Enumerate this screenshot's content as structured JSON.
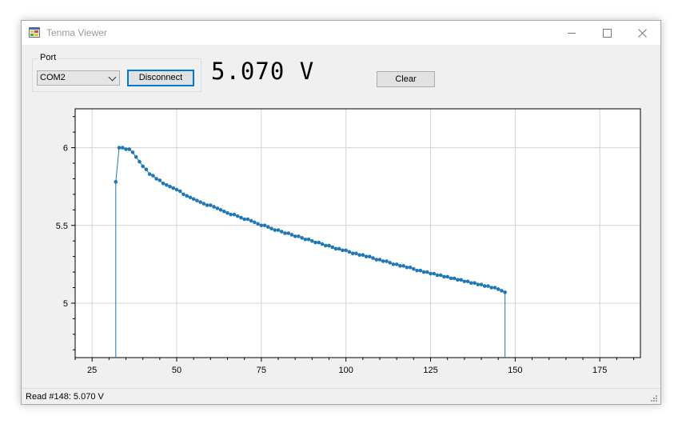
{
  "window": {
    "title": "Tenma Viewer"
  },
  "port_group": {
    "label": "Port",
    "selected": "COM2",
    "button_label": "Disconnect"
  },
  "reading": "5.070 V",
  "clear_label": "Clear",
  "status": "Read #148: 5.070 V",
  "chart_data": {
    "type": "line",
    "xlim": [
      20,
      187
    ],
    "ylim": [
      4.65,
      6.25
    ],
    "x_ticks": [
      25,
      50,
      75,
      100,
      125,
      150,
      175
    ],
    "y_ticks": [
      5,
      5.5,
      6
    ],
    "x_tick_labels": [
      "25",
      "50",
      "75",
      "100",
      "125",
      "150",
      "175"
    ],
    "y_tick_labels": [
      "5",
      "5.5",
      "6"
    ],
    "grid": true,
    "series_color": "#1f77b4",
    "series": [
      {
        "x": [
          32,
          33,
          34,
          35,
          36,
          37,
          38,
          39,
          40,
          41,
          42,
          43,
          44,
          45,
          46,
          47,
          48,
          49,
          50,
          51,
          52,
          53,
          54,
          55,
          56,
          57,
          58,
          59,
          60,
          61,
          62,
          63,
          64,
          65,
          66,
          67,
          68,
          69,
          70,
          71,
          72,
          73,
          74,
          75,
          76,
          77,
          78,
          79,
          80,
          81,
          82,
          83,
          84,
          85,
          86,
          87,
          88,
          89,
          90,
          91,
          92,
          93,
          94,
          95,
          96,
          97,
          98,
          99,
          100,
          101,
          102,
          103,
          104,
          105,
          106,
          107,
          108,
          109,
          110,
          111,
          112,
          113,
          114,
          115,
          116,
          117,
          118,
          119,
          120,
          121,
          122,
          123,
          124,
          125,
          126,
          127,
          128,
          129,
          130,
          131,
          132,
          133,
          134,
          135,
          136,
          137,
          138,
          139,
          140,
          141,
          142,
          143,
          144,
          145,
          146,
          147
        ],
        "y": [
          5.78,
          6.0,
          6.0,
          5.99,
          5.99,
          5.97,
          5.94,
          5.91,
          5.88,
          5.86,
          5.83,
          5.82,
          5.8,
          5.79,
          5.77,
          5.76,
          5.75,
          5.74,
          5.73,
          5.72,
          5.7,
          5.69,
          5.68,
          5.67,
          5.66,
          5.65,
          5.64,
          5.63,
          5.63,
          5.62,
          5.61,
          5.6,
          5.59,
          5.58,
          5.57,
          5.57,
          5.56,
          5.55,
          5.54,
          5.54,
          5.53,
          5.52,
          5.51,
          5.5,
          5.5,
          5.49,
          5.48,
          5.47,
          5.47,
          5.46,
          5.45,
          5.45,
          5.44,
          5.43,
          5.43,
          5.42,
          5.41,
          5.41,
          5.4,
          5.39,
          5.39,
          5.38,
          5.37,
          5.37,
          5.36,
          5.35,
          5.35,
          5.34,
          5.34,
          5.33,
          5.32,
          5.32,
          5.31,
          5.31,
          5.3,
          5.3,
          5.29,
          5.28,
          5.28,
          5.27,
          5.27,
          5.26,
          5.25,
          5.25,
          5.24,
          5.24,
          5.23,
          5.23,
          5.22,
          5.21,
          5.21,
          5.2,
          5.2,
          5.19,
          5.19,
          5.18,
          5.18,
          5.17,
          5.17,
          5.16,
          5.16,
          5.15,
          5.15,
          5.14,
          5.14,
          5.13,
          5.13,
          5.12,
          5.12,
          5.11,
          5.11,
          5.1,
          5.1,
          5.09,
          5.08,
          5.07
        ]
      }
    ],
    "drop_lines_x": [
      32,
      147
    ]
  }
}
